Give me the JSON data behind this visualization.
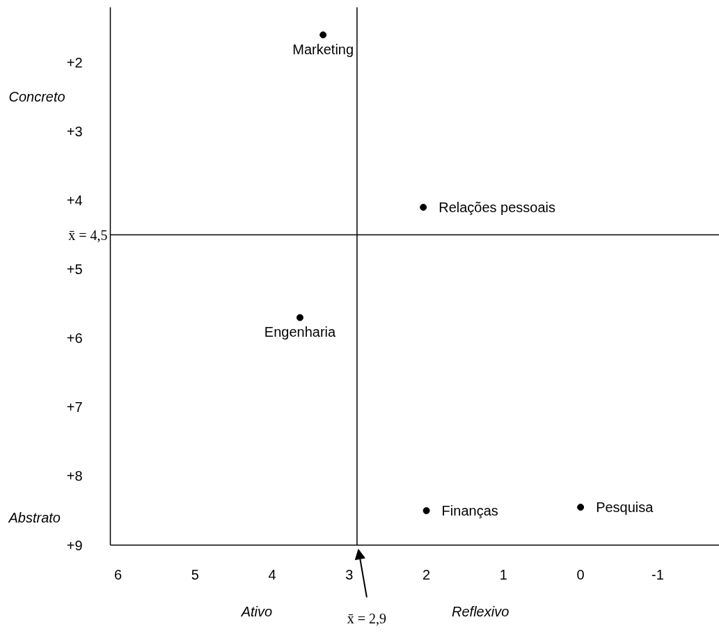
{
  "chart_data": {
    "type": "scatter",
    "xlim": [
      6.1,
      -1.8
    ],
    "ylim": [
      9,
      1.2
    ],
    "xticks": [
      6,
      5,
      4,
      3,
      2,
      1,
      0,
      -1
    ],
    "yticks": [
      {
        "value": 2,
        "label": "+2"
      },
      {
        "value": 3,
        "label": "+3"
      },
      {
        "value": 4,
        "label": "+4"
      },
      {
        "value": 5,
        "label": "+5"
      },
      {
        "value": 6,
        "label": "+6"
      },
      {
        "value": 7,
        "label": "+7"
      },
      {
        "value": 8,
        "label": "+8"
      },
      {
        "value": 9,
        "label": "+9"
      }
    ],
    "series": [
      {
        "name": "Marketing",
        "color": "#000000",
        "x": [
          3.34
        ],
        "values": [
          1.6
        ]
      },
      {
        "name": "Relações pessoais",
        "color": "#000000",
        "x": [
          2.04
        ],
        "values": [
          4.1
        ]
      },
      {
        "name": "Engenharia",
        "color": "#000000",
        "x": [
          3.64
        ],
        "values": [
          5.7
        ]
      },
      {
        "name": "Finanças",
        "color": "#000000",
        "x": [
          2.0
        ],
        "values": [
          8.5
        ]
      },
      {
        "name": "Pesquisa",
        "color": "#000000",
        "x": [
          0.0
        ],
        "values": [
          8.45
        ]
      }
    ],
    "ref_lines": [
      {
        "axis": "y",
        "value": 4.5,
        "label": "x̄ = 4,5"
      },
      {
        "axis": "x",
        "value": 2.9,
        "label": "x̄ = 2,9"
      }
    ],
    "annotations": [
      "Concreto",
      "Abstrato",
      "Ativo",
      "Reflexivo"
    ],
    "marker": "circle",
    "grid": false,
    "legend": false
  }
}
